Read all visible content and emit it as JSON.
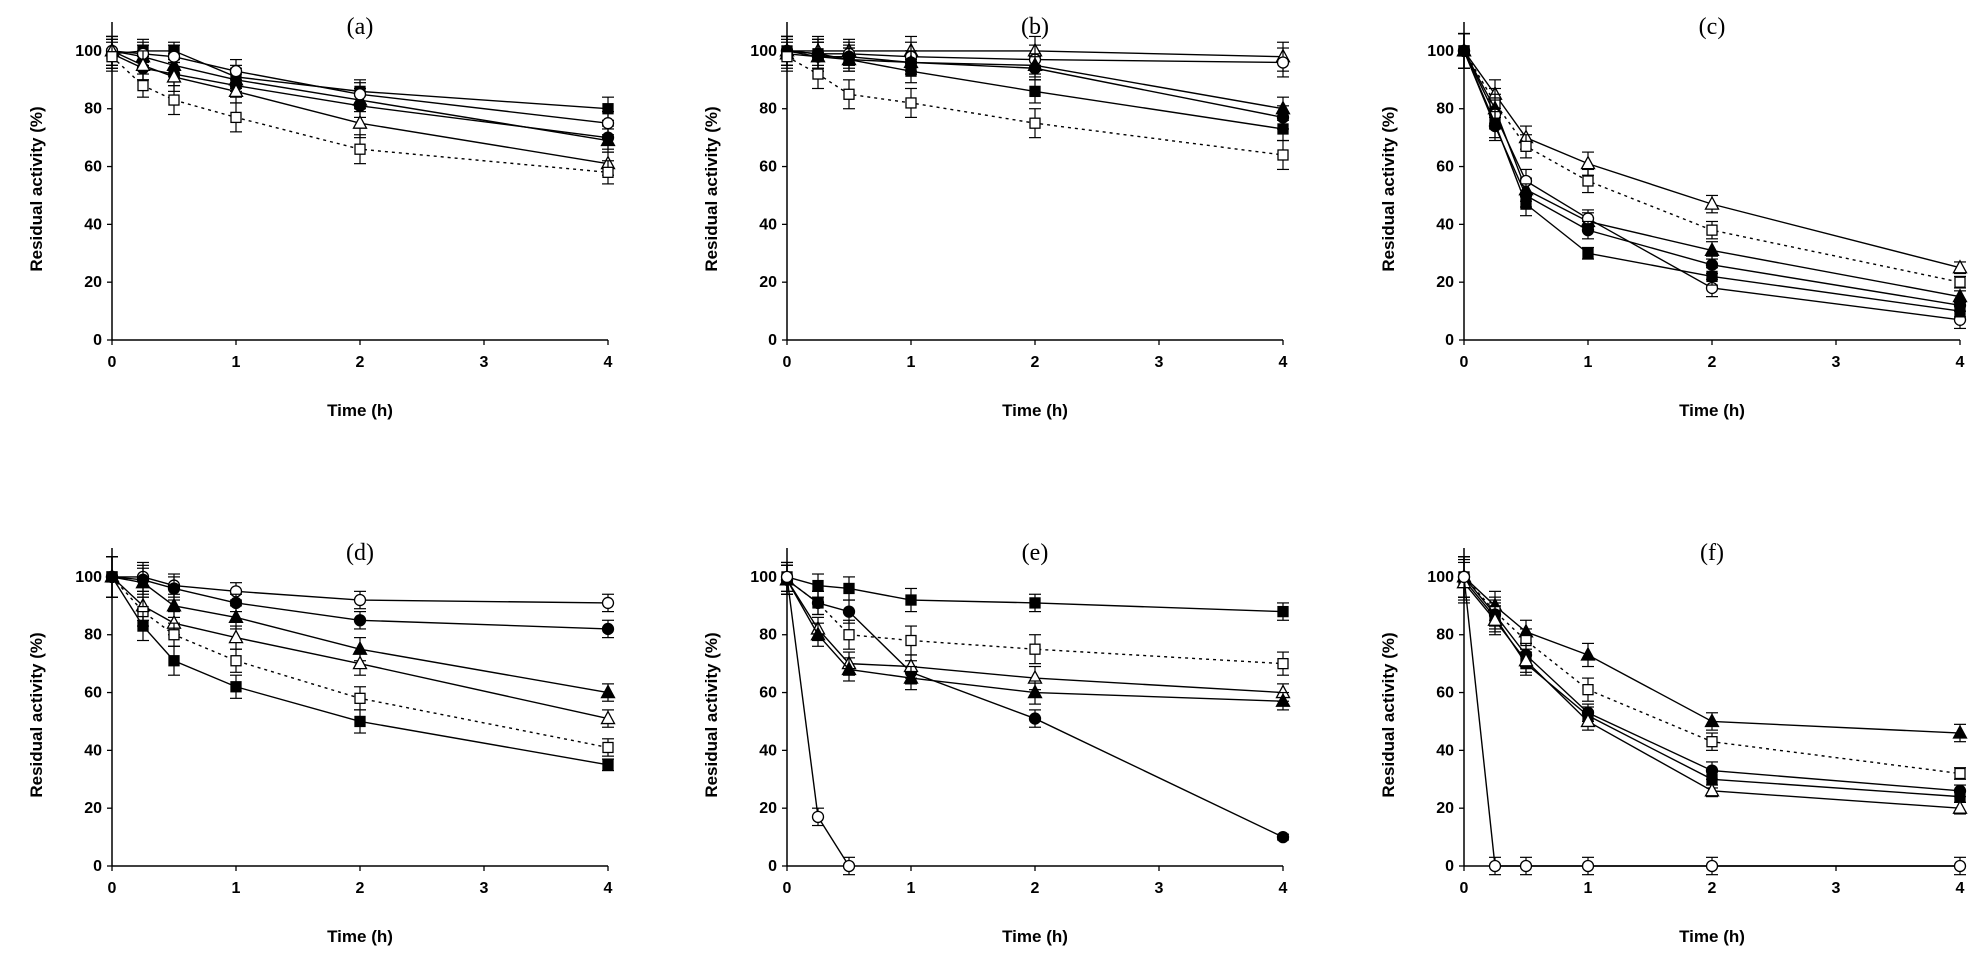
{
  "chart_data": [
    {
      "panel": "(a)",
      "type": "line",
      "xlabel": "Time (h)",
      "ylabel": "Residual activity (%)",
      "xlim": [
        0,
        4
      ],
      "ylim": [
        0,
        110
      ],
      "xticks": [
        "0",
        "1",
        "2",
        "3",
        "4"
      ],
      "yticks": [
        "0",
        "20",
        "40",
        "60",
        "80",
        "100"
      ],
      "x": [
        0,
        0.25,
        0.5,
        1,
        2,
        4
      ],
      "series": [
        {
          "name": "filled-square",
          "marker": "square",
          "filled": true,
          "dashed": false,
          "values": [
            99,
            100,
            100,
            91,
            86,
            80
          ],
          "errors": [
            5,
            4,
            3,
            4,
            4,
            4
          ]
        },
        {
          "name": "filled-circle",
          "marker": "circle",
          "filled": true,
          "dashed": false,
          "values": [
            99,
            94,
            92,
            88,
            81,
            70
          ],
          "errors": [
            5,
            4,
            4,
            4,
            4,
            4
          ]
        },
        {
          "name": "filled-triangle",
          "marker": "triangle",
          "filled": true,
          "dashed": false,
          "values": [
            100,
            98,
            95,
            90,
            83,
            69
          ],
          "errors": [
            5,
            4,
            4,
            4,
            4,
            4
          ]
        },
        {
          "name": "open-circle",
          "marker": "circle",
          "filled": false,
          "dashed": false,
          "values": [
            100,
            99,
            98,
            93,
            85,
            75
          ],
          "errors": [
            5,
            4,
            4,
            4,
            4,
            4
          ]
        },
        {
          "name": "open-triangle",
          "marker": "triangle",
          "filled": false,
          "dashed": false,
          "values": [
            100,
            95,
            91,
            86,
            75,
            61
          ],
          "errors": [
            5,
            5,
            5,
            4,
            5,
            4
          ]
        },
        {
          "name": "open-square",
          "marker": "square",
          "filled": false,
          "dashed": true,
          "values": [
            98,
            88,
            83,
            77,
            66,
            58
          ],
          "errors": [
            5,
            4,
            5,
            5,
            5,
            4
          ]
        }
      ]
    },
    {
      "panel": "(b)",
      "type": "line",
      "xlabel": "Time (h)",
      "ylabel": "Residual activity (%)",
      "xlim": [
        0,
        4
      ],
      "ylim": [
        0,
        110
      ],
      "xticks": [
        "0",
        "1",
        "2",
        "3",
        "4"
      ],
      "yticks": [
        "0",
        "20",
        "40",
        "60",
        "80",
        "100"
      ],
      "x": [
        0,
        0.25,
        0.5,
        1,
        2,
        4
      ],
      "series": [
        {
          "name": "open-triangle",
          "marker": "triangle",
          "filled": false,
          "dashed": false,
          "values": [
            100,
            100,
            100,
            100,
            100,
            98
          ],
          "errors": [
            5,
            5,
            4,
            5,
            5,
            5
          ]
        },
        {
          "name": "open-circle",
          "marker": "circle",
          "filled": false,
          "dashed": false,
          "values": [
            100,
            99,
            99,
            98,
            97,
            96
          ],
          "errors": [
            5,
            5,
            4,
            5,
            5,
            5
          ]
        },
        {
          "name": "filled-triangle",
          "marker": "triangle",
          "filled": true,
          "dashed": false,
          "values": [
            99,
            98,
            97,
            96,
            95,
            80
          ],
          "errors": [
            5,
            5,
            4,
            4,
            4,
            4
          ]
        },
        {
          "name": "filled-circle",
          "marker": "circle",
          "filled": true,
          "dashed": false,
          "values": [
            100,
            98,
            98,
            96,
            94,
            77
          ],
          "errors": [
            5,
            5,
            4,
            4,
            4,
            4
          ]
        },
        {
          "name": "filled-square",
          "marker": "square",
          "filled": true,
          "dashed": false,
          "values": [
            100,
            99,
            97,
            93,
            86,
            73
          ],
          "errors": [
            5,
            5,
            4,
            4,
            4,
            4
          ]
        },
        {
          "name": "open-square",
          "marker": "square",
          "filled": false,
          "dashed": true,
          "values": [
            98,
            92,
            85,
            82,
            75,
            64
          ],
          "errors": [
            5,
            5,
            5,
            5,
            5,
            5
          ]
        }
      ]
    },
    {
      "panel": "(c)",
      "type": "line",
      "xlabel": "Time (h)",
      "ylabel": "Residual activity (%)",
      "xlim": [
        0,
        4
      ],
      "ylim": [
        0,
        110
      ],
      "xticks": [
        "0",
        "1",
        "2",
        "3",
        "4"
      ],
      "yticks": [
        "0",
        "20",
        "40",
        "60",
        "80",
        "100"
      ],
      "x": [
        0,
        0.25,
        0.5,
        1,
        2,
        4
      ],
      "series": [
        {
          "name": "open-triangle",
          "marker": "triangle",
          "filled": false,
          "dashed": false,
          "values": [
            100,
            85,
            70,
            61,
            47,
            25
          ],
          "errors": [
            6,
            5,
            4,
            4,
            3,
            2
          ]
        },
        {
          "name": "open-square",
          "marker": "square",
          "filled": false,
          "dashed": true,
          "values": [
            100,
            82,
            67,
            55,
            38,
            20
          ],
          "errors": [
            6,
            5,
            4,
            4,
            3,
            2
          ]
        },
        {
          "name": "filled-triangle",
          "marker": "triangle",
          "filled": true,
          "dashed": false,
          "values": [
            100,
            80,
            52,
            41,
            31,
            15
          ],
          "errors": [
            6,
            5,
            4,
            3,
            3,
            2
          ]
        },
        {
          "name": "open-circle",
          "marker": "circle",
          "filled": false,
          "dashed": false,
          "values": [
            100,
            78,
            55,
            42,
            18,
            7
          ],
          "errors": [
            6,
            5,
            4,
            3,
            3,
            3
          ]
        },
        {
          "name": "filled-circle",
          "marker": "circle",
          "filled": true,
          "dashed": false,
          "values": [
            100,
            74,
            50,
            38,
            26,
            12
          ],
          "errors": [
            6,
            5,
            4,
            3,
            3,
            2
          ]
        },
        {
          "name": "filled-square",
          "marker": "square",
          "filled": true,
          "dashed": false,
          "values": [
            100,
            75,
            47,
            30,
            22,
            10
          ],
          "errors": [
            6,
            5,
            4,
            2,
            3,
            2
          ]
        }
      ]
    },
    {
      "panel": "(d)",
      "type": "line",
      "xlabel": "Time (h)",
      "ylabel": "Residual activity (%)",
      "xlim": [
        0,
        4
      ],
      "ylim": [
        0,
        110
      ],
      "xticks": [
        "0",
        "1",
        "2",
        "3",
        "4"
      ],
      "yticks": [
        "0",
        "20",
        "40",
        "60",
        "80",
        "100"
      ],
      "x": [
        0,
        0.25,
        0.5,
        1,
        2,
        4
      ],
      "series": [
        {
          "name": "open-circle",
          "marker": "circle",
          "filled": false,
          "dashed": false,
          "values": [
            100,
            100,
            97,
            95,
            92,
            91
          ],
          "errors": [
            7,
            5,
            4,
            3,
            3,
            3
          ]
        },
        {
          "name": "filled-circle",
          "marker": "circle",
          "filled": true,
          "dashed": false,
          "values": [
            100,
            99,
            96,
            91,
            85,
            82
          ],
          "errors": [
            7,
            5,
            4,
            3,
            3,
            3
          ]
        },
        {
          "name": "filled-triangle",
          "marker": "triangle",
          "filled": true,
          "dashed": false,
          "values": [
            100,
            98,
            90,
            86,
            75,
            60
          ],
          "errors": [
            7,
            5,
            4,
            4,
            4,
            3
          ]
        },
        {
          "name": "open-triangle",
          "marker": "triangle",
          "filled": false,
          "dashed": false,
          "values": [
            100,
            90,
            84,
            79,
            70,
            51
          ],
          "errors": [
            7,
            5,
            4,
            4,
            4,
            3
          ]
        },
        {
          "name": "open-square",
          "marker": "square",
          "filled": false,
          "dashed": true,
          "values": [
            100,
            88,
            80,
            71,
            58,
            41
          ],
          "errors": [
            7,
            5,
            4,
            4,
            4,
            3
          ]
        },
        {
          "name": "filled-square",
          "marker": "square",
          "filled": true,
          "dashed": false,
          "values": [
            100,
            83,
            71,
            62,
            50,
            35
          ],
          "errors": [
            7,
            5,
            5,
            4,
            4,
            2
          ]
        }
      ]
    },
    {
      "panel": "(e)",
      "type": "line",
      "xlabel": "Time (h)",
      "ylabel": "Residual activity (%)",
      "xlim": [
        0,
        4
      ],
      "ylim": [
        0,
        110
      ],
      "xticks": [
        "0",
        "1",
        "2",
        "3",
        "4"
      ],
      "yticks": [
        "0",
        "20",
        "40",
        "60",
        "80",
        "100"
      ],
      "x": [
        0,
        0.25,
        0.5,
        1,
        2,
        4
      ],
      "series": [
        {
          "name": "filled-square",
          "marker": "square",
          "filled": true,
          "dashed": false,
          "values": [
            100,
            97,
            96,
            92,
            91,
            88
          ],
          "errors": [
            5,
            4,
            4,
            4,
            3,
            3
          ]
        },
        {
          "name": "open-square",
          "marker": "square",
          "filled": false,
          "dashed": true,
          "values": [
            99,
            91,
            80,
            78,
            75,
            70
          ],
          "errors": [
            5,
            4,
            5,
            5,
            5,
            4
          ]
        },
        {
          "name": "filled-circle",
          "marker": "circle",
          "filled": true,
          "dashed": false,
          "values": [
            99,
            91,
            88,
            67,
            51,
            10
          ],
          "errors": [
            5,
            4,
            4,
            4,
            3,
            1
          ]
        },
        {
          "name": "open-triangle",
          "marker": "triangle",
          "filled": false,
          "dashed": false,
          "values": [
            99,
            82,
            70,
            69,
            65,
            60
          ],
          "errors": [
            5,
            4,
            4,
            4,
            4,
            3
          ]
        },
        {
          "name": "filled-triangle",
          "marker": "triangle",
          "filled": true,
          "dashed": false,
          "values": [
            99,
            80,
            68,
            65,
            60,
            57
          ],
          "errors": [
            5,
            4,
            4,
            4,
            4,
            3
          ]
        },
        {
          "name": "open-circle",
          "marker": "circle",
          "filled": false,
          "dashed": false,
          "x": [
            0,
            0.25,
            0.5
          ],
          "values": [
            100,
            17,
            0
          ],
          "errors": [
            5,
            3,
            3
          ]
        }
      ]
    },
    {
      "panel": "(f)",
      "type": "line",
      "xlabel": "Time (h)",
      "ylabel": "Residual activity (%)",
      "xlim": [
        0,
        4
      ],
      "ylim": [
        0,
        110
      ],
      "xticks": [
        "0",
        "1",
        "2",
        "3",
        "4"
      ],
      "yticks": [
        "0",
        "20",
        "40",
        "60",
        "80",
        "100"
      ],
      "x": [
        0,
        0.25,
        0.5,
        1,
        2,
        4
      ],
      "series": [
        {
          "name": "filled-triangle",
          "marker": "triangle",
          "filled": true,
          "dashed": false,
          "values": [
            100,
            90,
            81,
            73,
            50,
            46
          ],
          "errors": [
            7,
            5,
            4,
            4,
            3,
            3
          ]
        },
        {
          "name": "open-square",
          "marker": "square",
          "filled": false,
          "dashed": true,
          "values": [
            100,
            88,
            78,
            61,
            43,
            32
          ],
          "errors": [
            7,
            5,
            4,
            4,
            3,
            2
          ]
        },
        {
          "name": "filled-circle",
          "marker": "circle",
          "filled": true,
          "dashed": false,
          "values": [
            100,
            87,
            73,
            53,
            33,
            26
          ],
          "errors": [
            7,
            5,
            4,
            3,
            3,
            2
          ]
        },
        {
          "name": "filled-square",
          "marker": "square",
          "filled": true,
          "dashed": false,
          "values": [
            99,
            86,
            70,
            52,
            30,
            24
          ],
          "errors": [
            7,
            5,
            4,
            3,
            3,
            2
          ]
        },
        {
          "name": "open-triangle",
          "marker": "triangle",
          "filled": false,
          "dashed": false,
          "values": [
            98,
            85,
            71,
            50,
            26,
            20
          ],
          "errors": [
            7,
            5,
            4,
            3,
            2,
            2
          ]
        },
        {
          "name": "open-circle",
          "marker": "circle",
          "filled": false,
          "dashed": false,
          "values": [
            100,
            0,
            0,
            0,
            0,
            0
          ],
          "errors": [
            7,
            3,
            3,
            3,
            3,
            3
          ]
        }
      ]
    }
  ]
}
